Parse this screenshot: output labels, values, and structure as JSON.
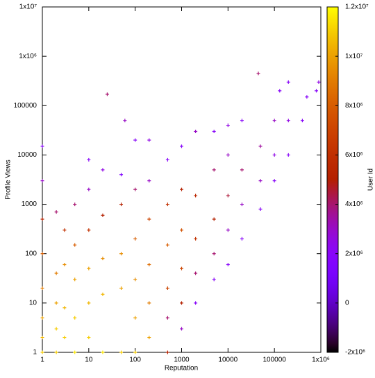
{
  "chart_data": {
    "type": "scatter",
    "x_label": "Reputation",
    "y_label": "Profile Views",
    "colorbar_label": "User Id",
    "x_log": true,
    "y_log": true,
    "xlim": [
      1,
      1000000
    ],
    "ylim": [
      1,
      10000000
    ],
    "cblim": [
      -2000000,
      12000000
    ],
    "xticks": [
      1,
      10,
      100,
      1000,
      10000,
      100000,
      {
        "value": 1000000,
        "label": "1x10⁶"
      }
    ],
    "yticks": [
      1,
      10,
      100,
      1000,
      10000,
      100000,
      {
        "value": 1000000,
        "label": "1x10⁶"
      },
      {
        "value": 10000000,
        "label": "1x10⁷"
      }
    ],
    "cbticks": [
      {
        "value": -2000000,
        "label": "-2x10⁶"
      },
      0,
      {
        "value": 2000000,
        "label": "2x10⁶"
      },
      {
        "value": 4000000,
        "label": "4x10⁶"
      },
      {
        "value": 6000000,
        "label": "6x10⁶"
      },
      {
        "value": 8000000,
        "label": "8x10⁶"
      },
      {
        "value": 10000000,
        "label": "1x10⁷"
      },
      {
        "value": 12000000,
        "label": "1.2x10⁷"
      }
    ],
    "x": [
      1,
      1,
      1,
      1,
      1,
      1,
      1,
      1,
      2,
      2,
      2,
      2,
      2,
      3,
      3,
      3,
      3,
      5,
      5,
      5,
      5,
      5,
      10,
      10,
      10,
      10,
      10,
      10,
      20,
      20,
      20,
      20,
      20,
      25,
      50,
      50,
      50,
      50,
      50,
      60,
      100,
      100,
      100,
      100,
      100,
      100,
      200,
      200,
      200,
      200,
      200,
      200,
      500,
      500,
      500,
      500,
      500,
      500,
      1000,
      1000,
      1000,
      1000,
      1000,
      1000,
      2000,
      2000,
      2000,
      2000,
      2000,
      5000,
      5000,
      5000,
      5000,
      5000,
      10000,
      10000,
      10000,
      10000,
      10000,
      20000,
      20000,
      20000,
      20000,
      50000,
      50000,
      50000,
      45000,
      100000,
      100000,
      100000,
      130000,
      200000,
      200000,
      200000,
      400000,
      500000,
      800000,
      900000
    ],
    "values": [
      1,
      2,
      5,
      20,
      100,
      500,
      3000,
      15000,
      1,
      3,
      10,
      40,
      700,
      2,
      8,
      60,
      300,
      1,
      5,
      30,
      150,
      1000,
      2,
      10,
      50,
      300,
      2000,
      8000,
      1,
      15,
      80,
      600,
      5000,
      170000,
      1,
      20,
      100,
      1000,
      4000,
      50000,
      1,
      5,
      30,
      200,
      2000,
      20000,
      2,
      10,
      60,
      500,
      3000,
      20000,
      1,
      5,
      20,
      150,
      1000,
      8000,
      3,
      10,
      50,
      300,
      2000,
      15000,
      10,
      40,
      200,
      1500,
      30000,
      30,
      100,
      500,
      5000,
      30000,
      60,
      300,
      1500,
      10000,
      40000,
      200,
      1000,
      5000,
      50000,
      800,
      3000,
      15000,
      450000,
      3000,
      10000,
      50000,
      200000,
      10000,
      50000,
      300000,
      50000,
      150000,
      200000,
      300000
    ],
    "color_values": [
      11000000,
      10500000,
      10000000,
      9000000,
      8000000,
      5000000,
      3000000,
      2000000,
      11000000,
      11000000,
      10000000,
      9000000,
      4000000,
      11000000,
      10500000,
      9500000,
      6000000,
      11500000,
      11000000,
      10000000,
      8000000,
      4000000,
      11000000,
      10500000,
      10000000,
      6000000,
      3000000,
      2000000,
      11500000,
      10500000,
      9500000,
      5000000,
      2500000,
      4000000,
      11000000,
      10000000,
      9500000,
      5000000,
      1500000,
      3000000,
      11000000,
      10000000,
      9500000,
      8000000,
      4000000,
      2000000,
      10000000,
      9000000,
      8500000,
      7000000,
      3000000,
      2500000,
      5000000,
      4000000,
      7000000,
      8000000,
      6000000,
      2000000,
      3000000,
      5000000,
      7000000,
      7500000,
      5000000,
      2000000,
      2000000,
      4000000,
      6000000,
      5500000,
      3000000,
      2000000,
      4000000,
      5000000,
      4000000,
      2000000,
      2000000,
      3000000,
      4500000,
      3000000,
      2500000,
      2000000,
      3000000,
      4000000,
      2000000,
      2000000,
      3000000,
      3500000,
      4000000,
      2000000,
      2500000,
      3000000,
      2000000,
      2000000,
      2500000,
      2000000,
      2000000,
      2000000,
      2000000,
      2500000
    ]
  }
}
